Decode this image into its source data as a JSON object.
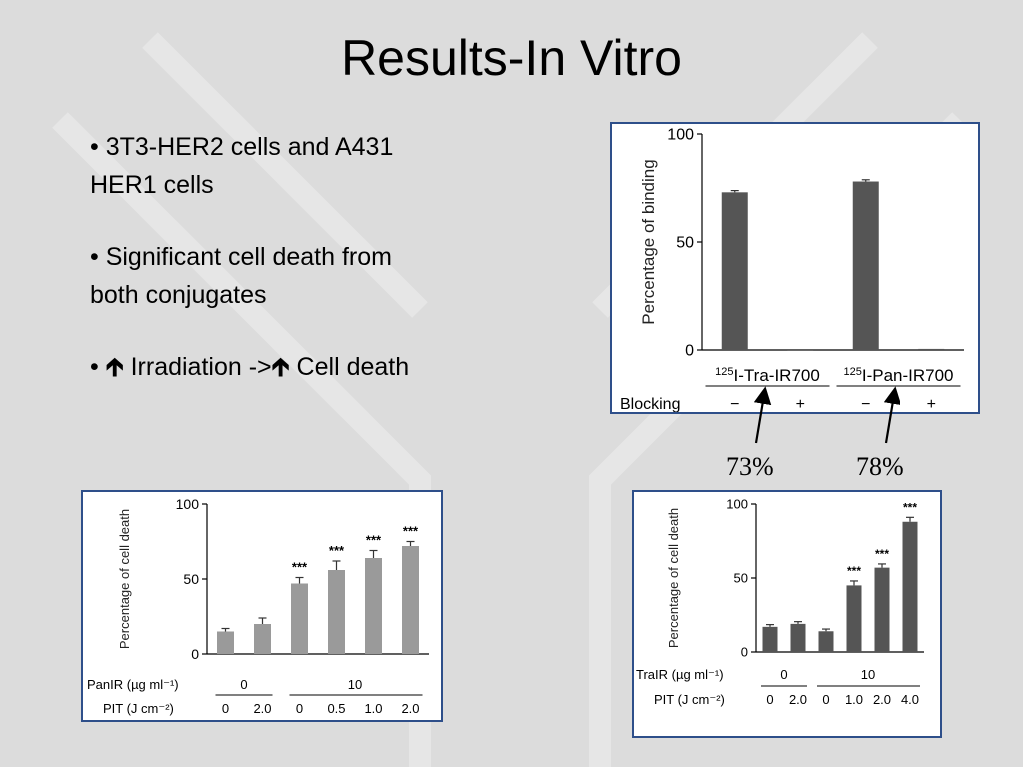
{
  "slide": {
    "title": "Results-In Vitro",
    "bullets": [
      {
        "prefix": "• ",
        "text": "3T3-HER2 cells and A431 HER1 cells"
      },
      {
        "prefix": "• ",
        "text": "Significant cell death from both conjugates"
      },
      {
        "prefix": "• ",
        "parts": [
          " Irradiation ->",
          " Cell death"
        ]
      }
    ],
    "annotations": [
      "73%",
      "78%"
    ]
  },
  "colors": {
    "panel_border": "#2e4f8a",
    "bar_dark": "#555555",
    "bar_light": "#9a9a9a"
  },
  "chart_data": [
    {
      "id": "binding",
      "type": "bar",
      "ylabel": "Percentage of binding",
      "ylim": [
        0,
        100
      ],
      "yticks": [
        0,
        50,
        100
      ],
      "categories": [
        "¹²⁵I-Tra-IR700 −",
        "¹²⁵I-Tra-IR700 +",
        "¹²⁵I-Pan-IR700 −",
        "¹²⁵I-Pan-IR700 +"
      ],
      "values": [
        73,
        0,
        78,
        0.5
      ],
      "errors": [
        0.8,
        0,
        0.8,
        0
      ],
      "groups": [
        {
          "label_sup": "125",
          "label": "I-Tra-IR700"
        },
        {
          "label_sup": "125",
          "label": "I-Pan-IR700"
        }
      ],
      "row_label": "Blocking",
      "row_values": [
        "−",
        "+",
        "−",
        "+"
      ]
    },
    {
      "id": "panir",
      "type": "bar",
      "ylabel": "Percentage of cell death",
      "ylim": [
        0,
        100
      ],
      "yticks": [
        0,
        50,
        100
      ],
      "values": [
        15,
        20,
        47,
        56,
        64,
        72
      ],
      "errors": [
        2,
        4,
        4,
        6,
        5,
        3
      ],
      "annotations": [
        "",
        "",
        "***",
        "***",
        "***",
        "***"
      ],
      "row1_label": "PanIR (µg ml⁻¹)",
      "row1_groups": [
        "0",
        "10"
      ],
      "row2_label": "PIT (J cm⁻²)",
      "row2_values": [
        "0",
        "2.0",
        "0",
        "0.5",
        "1.0",
        "2.0"
      ]
    },
    {
      "id": "trair",
      "type": "bar",
      "ylabel": "Percentage of cell death",
      "ylim": [
        0,
        100
      ],
      "yticks": [
        0,
        50,
        100
      ],
      "values": [
        17,
        19,
        14,
        45,
        57,
        88
      ],
      "errors": [
        1.5,
        1.5,
        1.5,
        3,
        2.5,
        3
      ],
      "annotations": [
        "",
        "",
        "",
        "***",
        "***",
        "***"
      ],
      "row1_label": "TraIR (µg ml⁻¹)",
      "row1_groups": [
        "0",
        "10"
      ],
      "row2_label": "PIT (J cm⁻²)",
      "row2_values": [
        "0",
        "2.0",
        "0",
        "1.0",
        "2.0",
        "4.0"
      ]
    }
  ]
}
